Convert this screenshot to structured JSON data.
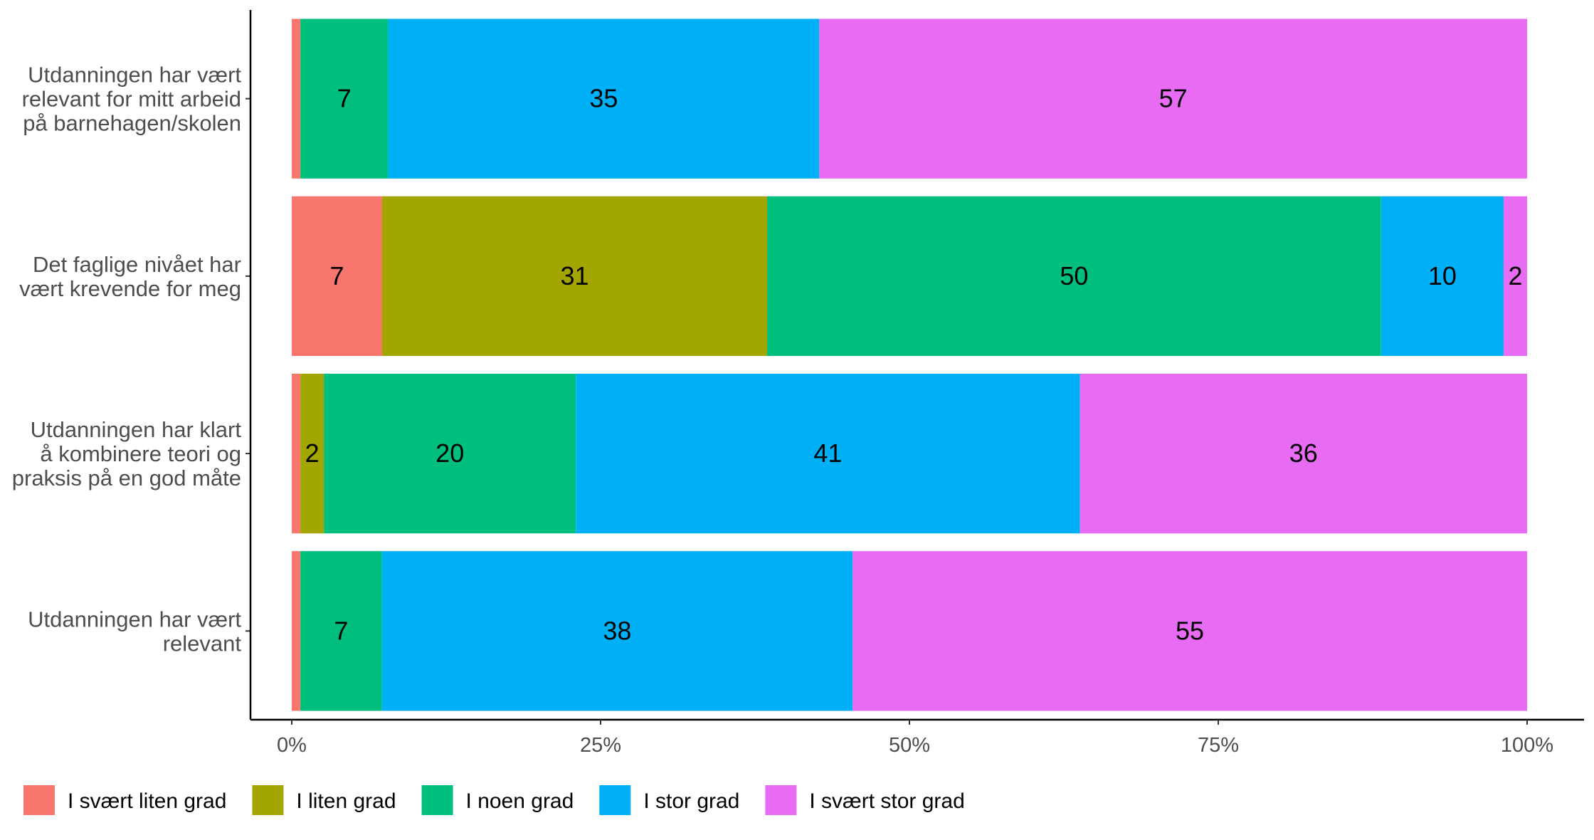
{
  "chart_data": {
    "type": "bar",
    "orientation": "horizontal",
    "stacked": true,
    "normalized": true,
    "categories": [
      [
        "Utdanningen har vært",
        "relevant for mitt arbeid",
        "på barnehagen/skolen"
      ],
      [
        "Det faglige nivået har",
        "vært krevende for meg"
      ],
      [
        "Utdanningen har klart",
        "å kombinere teori og",
        "praksis på en god måte"
      ],
      [
        "Utdanningen har vært",
        "relevant"
      ]
    ],
    "series": [
      {
        "name": "I svært liten grad",
        "color": "#F8766D",
        "values": [
          0.7,
          7.3,
          0.7,
          0.7
        ],
        "labels": [
          "",
          "7",
          "",
          ""
        ]
      },
      {
        "name": "I liten grad",
        "color": "#A3A500",
        "values": [
          0,
          31.1,
          1.9,
          0
        ],
        "labels": [
          "",
          "31",
          "2",
          ""
        ]
      },
      {
        "name": "I noen grad",
        "color": "#00BF7D",
        "values": [
          7.1,
          49.6,
          20.4,
          6.6
        ],
        "labels": [
          "7",
          "50",
          "20",
          "7"
        ]
      },
      {
        "name": "I stor grad",
        "color": "#00B0F6",
        "values": [
          34.9,
          9.9,
          40.8,
          38.1
        ],
        "labels": [
          "35",
          "10",
          "41",
          "38"
        ]
      },
      {
        "name": "I svært stor grad",
        "color": "#E76BF3",
        "values": [
          57.3,
          1.9,
          36.2,
          54.6
        ],
        "labels": [
          "57",
          "2",
          "36",
          "55"
        ]
      }
    ],
    "xlim": [
      0,
      100
    ],
    "x_ticks": [
      "0%",
      "25%",
      "50%",
      "75%",
      "100%"
    ],
    "x_tick_values": [
      0,
      25,
      50,
      75,
      100
    ],
    "grid": false,
    "legend_position": "bottom"
  }
}
